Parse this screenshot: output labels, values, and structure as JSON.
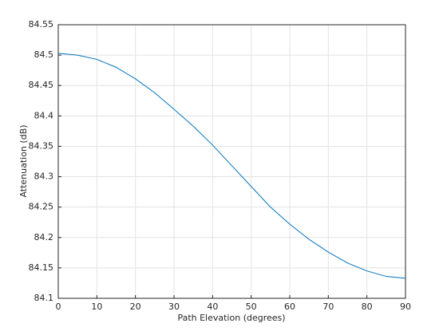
{
  "chart_data": {
    "type": "line",
    "xlabel": "Path Elevation (degrees)",
    "ylabel": "Attenuation (dB)",
    "x": [
      0,
      5,
      10,
      15,
      20,
      25,
      30,
      35,
      40,
      45,
      50,
      55,
      60,
      65,
      70,
      75,
      80,
      85,
      90
    ],
    "series": [
      {
        "color": "#0072bd",
        "values": [
          84.503,
          84.5,
          84.493,
          84.48,
          84.461,
          84.438,
          84.411,
          84.383,
          84.352,
          84.318,
          84.284,
          84.25,
          84.222,
          84.197,
          84.176,
          84.158,
          84.145,
          84.136,
          84.133
        ]
      }
    ],
    "xlim": [
      0,
      90
    ],
    "xticks": [
      0,
      10,
      20,
      30,
      40,
      50,
      60,
      70,
      80,
      90
    ],
    "ylim": [
      84.1,
      84.55
    ],
    "yticks": [
      84.1,
      84.15,
      84.2,
      84.25,
      84.3,
      84.35,
      84.4,
      84.45,
      84.5,
      84.55
    ],
    "grid": true
  }
}
